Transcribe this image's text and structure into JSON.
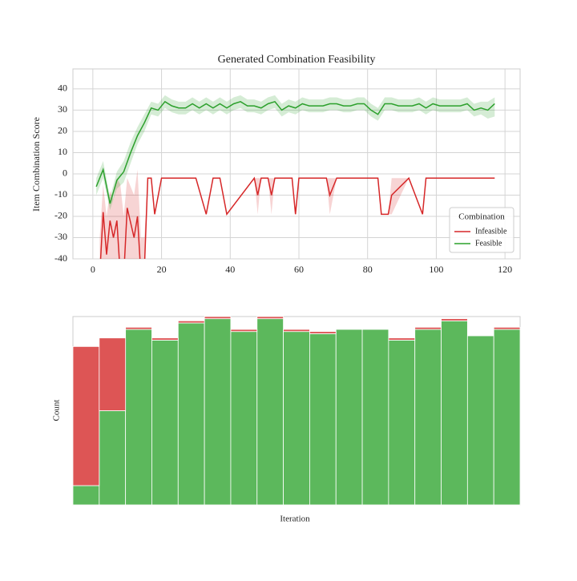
{
  "chart_data": [
    {
      "type": "line",
      "title": "Generated Combination Feasibility",
      "ylabel": "Item Combination Score",
      "xlim": [
        -5.8,
        124.4
      ],
      "xticks": [
        0,
        20,
        40,
        60,
        80,
        100,
        120
      ],
      "ylim": [
        -40,
        49.4
      ],
      "yticks": [
        -40,
        -30,
        -20,
        -10,
        0,
        10,
        20,
        30,
        40
      ],
      "grid": true,
      "legend_title": "Combination",
      "legend_loc": "lower right",
      "series": [
        {
          "name": "Infeasible",
          "color": "#d62728",
          "x": [
            2,
            3,
            4,
            5,
            6,
            7,
            8,
            9,
            10,
            12,
            13,
            14,
            15,
            16,
            17,
            18,
            20,
            30,
            33,
            35,
            37,
            39,
            47,
            48,
            49,
            51,
            52,
            53,
            58,
            59,
            60,
            68,
            69,
            71,
            83,
            84,
            86,
            87,
            92,
            96,
            97,
            117
          ],
          "values": [
            -48,
            -18,
            -38,
            -22,
            -30,
            -22,
            -48,
            -48,
            -16,
            -30,
            -20,
            -48,
            -45,
            -2,
            -2,
            -19,
            -2,
            -2,
            -19,
            -2,
            -2,
            -19,
            -2,
            -10,
            -2,
            -2,
            -10,
            -2,
            -2,
            -19,
            -2,
            -2,
            -10,
            -2,
            -2,
            -19,
            -19,
            -10,
            -2,
            -19,
            -2,
            -2
          ],
          "lower": [
            -60,
            -50,
            -55,
            -48,
            -50,
            -45,
            -60,
            -60,
            -45,
            -55,
            -48,
            -60,
            -55,
            -2,
            -2,
            -19,
            -2,
            -2,
            -19,
            -2,
            -2,
            -19,
            -2,
            -19,
            -2,
            -2,
            -19,
            -2,
            -2,
            -19,
            -2,
            -2,
            -19,
            -2,
            -2,
            -19,
            -19,
            -19,
            -2,
            -19,
            -2,
            -2
          ],
          "upper": [
            -30,
            -5,
            -20,
            -8,
            -12,
            -2,
            -5,
            -20,
            -2,
            -10,
            2,
            -30,
            -30,
            -2,
            -2,
            -19,
            -2,
            -2,
            -19,
            -2,
            -2,
            -19,
            -2,
            -2,
            -2,
            -2,
            -2,
            -2,
            -2,
            -19,
            -2,
            -2,
            -2,
            -2,
            -2,
            -19,
            -19,
            -2,
            -2,
            -19,
            -2,
            -2
          ]
        },
        {
          "name": "Feasible",
          "color": "#2ca02c",
          "x": [
            1,
            3,
            5,
            7,
            9,
            11,
            13,
            15,
            17,
            19,
            21,
            23,
            25,
            27,
            29,
            31,
            33,
            35,
            37,
            39,
            41,
            43,
            45,
            47,
            49,
            51,
            53,
            55,
            57,
            59,
            61,
            63,
            65,
            67,
            69,
            71,
            73,
            75,
            77,
            79,
            81,
            83,
            85,
            87,
            89,
            91,
            93,
            95,
            97,
            99,
            101,
            103,
            105,
            107,
            109,
            111,
            113,
            115,
            117
          ],
          "values": [
            -6,
            2,
            -14,
            -3,
            1,
            10,
            18,
            24,
            31,
            30,
            34,
            32,
            31,
            31,
            33,
            31,
            33,
            31,
            33,
            31,
            33,
            34,
            32,
            32,
            31,
            33,
            34,
            30,
            32,
            31,
            33,
            32,
            32,
            32,
            33,
            33,
            32,
            32,
            33,
            33,
            30,
            28,
            33,
            33,
            32,
            32,
            32,
            33,
            31,
            33,
            32,
            32,
            32,
            32,
            33,
            30,
            31,
            30,
            33
          ],
          "lower": [
            -10,
            -2,
            -17,
            -7,
            -4,
            5,
            14,
            20,
            28,
            27,
            31,
            29,
            28,
            28,
            30,
            28,
            30,
            28,
            30,
            28,
            30,
            31,
            29,
            29,
            28,
            30,
            31,
            27,
            29,
            28,
            30,
            29,
            29,
            29,
            30,
            30,
            29,
            29,
            30,
            30,
            27,
            25,
            30,
            30,
            29,
            29,
            29,
            30,
            28,
            30,
            29,
            29,
            29,
            29,
            30,
            27,
            28,
            26,
            27
          ],
          "upper": [
            -2,
            6,
            -11,
            1,
            6,
            15,
            22,
            28,
            34,
            33,
            37,
            35,
            34,
            34,
            36,
            34,
            36,
            34,
            36,
            34,
            36,
            37,
            35,
            35,
            34,
            36,
            37,
            33,
            35,
            34,
            36,
            35,
            35,
            35,
            36,
            36,
            35,
            35,
            36,
            36,
            33,
            31,
            36,
            36,
            35,
            35,
            35,
            36,
            34,
            36,
            35,
            35,
            35,
            35,
            36,
            33,
            34,
            34,
            36
          ]
        }
      ]
    },
    {
      "type": "histogram",
      "stacked": true,
      "xlabel": "Iteration",
      "ylabel": "Count",
      "bins": [
        1,
        7.9,
        14.8,
        21.7,
        28.6,
        35.5,
        42.4,
        49.3,
        56.2,
        63.1,
        70,
        76.9,
        83.8,
        90.7,
        97.6,
        104.5,
        111.4,
        118.3
      ],
      "xlim": [
        1,
        118.3
      ],
      "ylim": [
        0,
        88
      ],
      "series": [
        {
          "name": "Feasible",
          "color": "#5cb85c",
          "values": [
            9,
            44,
            82,
            77,
            85,
            87,
            81,
            87,
            81,
            80,
            82,
            82,
            77,
            82,
            86,
            79,
            82
          ]
        },
        {
          "name": "Infeasible",
          "color": "#dd5555",
          "values": [
            65,
            34,
            1,
            1,
            1,
            1,
            1,
            1,
            1,
            1,
            0,
            0,
            1,
            1,
            1,
            0,
            1
          ]
        }
      ]
    }
  ]
}
